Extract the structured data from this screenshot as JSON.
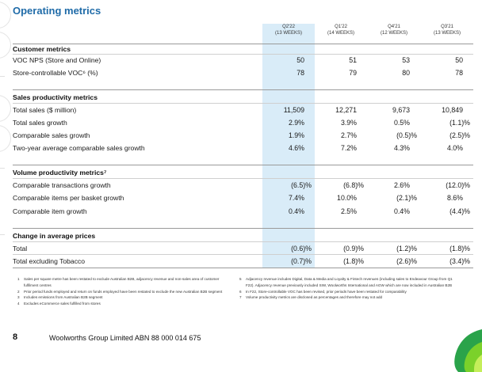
{
  "page_title": "Operating metrics",
  "columns": [
    {
      "period": "Q2'22",
      "weeks": "(13 WEEKS)"
    },
    {
      "period": "Q1'22",
      "weeks": "(14 WEEKS)"
    },
    {
      "period": "Q4'21",
      "weeks": "(12 WEEKS)"
    },
    {
      "period": "Q3'21",
      "weeks": "(13 WEEKS)"
    }
  ],
  "sections": [
    {
      "title": "Customer metrics",
      "rows": [
        {
          "label": "VOC NPS (Store and Online)",
          "values": [
            "50",
            "51",
            "53",
            "50"
          ]
        },
        {
          "label": "Store-controllable VOC⁶ (%)",
          "values": [
            "78",
            "79",
            "80",
            "78"
          ]
        }
      ]
    },
    {
      "title": "Sales productivity metrics",
      "rows": [
        {
          "label": "Total sales ($ million)",
          "values": [
            "11,509",
            "12,271",
            "9,673",
            "10,849"
          ]
        },
        {
          "label": "Total sales growth",
          "values": [
            "2.9%",
            "3.9%",
            "0.5%",
            "(1.1)%"
          ]
        },
        {
          "label": "Comparable sales growth",
          "values": [
            "1.9%",
            "2.7%",
            "(0.5)%",
            "(2.5)%"
          ]
        },
        {
          "label": "Two-year average comparable sales growth",
          "values": [
            "4.6%",
            "7.2%",
            "4.3%",
            "4.0%"
          ]
        }
      ]
    },
    {
      "title": "Volume productivity metrics⁷",
      "rows": [
        {
          "label": "Comparable transactions growth",
          "values": [
            "(6.5)%",
            "(6.8)%",
            "2.6%",
            "(12.0)%"
          ]
        },
        {
          "label": "Comparable items per basket growth",
          "values": [
            "7.4%",
            "10.0%",
            "(2.1)%",
            "8.6%"
          ]
        },
        {
          "label": "Comparable item growth",
          "values": [
            "0.4%",
            "2.5%",
            "0.4%",
            "(4.4)%"
          ]
        }
      ]
    },
    {
      "title": "Change in average prices",
      "rows": [
        {
          "label": "Total",
          "values": [
            "(0.6)%",
            "(0.9)%",
            "(1.2)%",
            "(1.8)%"
          ]
        },
        {
          "label": "Total excluding Tobacco",
          "values": [
            "(0.7)%",
            "(1.8)%",
            "(2.6)%",
            "(3.4)%"
          ]
        }
      ]
    }
  ],
  "footnotes_left": [
    {
      "num": "1",
      "text": "Sales per square metre has been restated to exclude Australian B2B, adjacency revenue and non-sales area of customer fulfilment centres"
    },
    {
      "num": "2",
      "text": "Prior period funds employed and return on funds employed have been restated to exclude the new Australian B2B segment"
    },
    {
      "num": "3",
      "text": "Includes emissions from Australian B2B segment"
    },
    {
      "num": "4",
      "text": "Excludes eCommerce sales fulfilled from stores"
    }
  ],
  "footnotes_right": [
    {
      "num": "5",
      "text": "Adjacency revenue includes Digital, Data & Media and Loyalty & Fintech revenues (including sales to Endeavour Group from Q1 F22). Adjacency revenue previously included SIW, Woolworths International and AGW which are now included in Australian B2B"
    },
    {
      "num": "6",
      "text": "In F22, Store-controllable VOC has been revised, prior periods have been restated for comparability"
    },
    {
      "num": "7",
      "text": "Volume productivity metrics are disclosed as percentages and therefore may not add"
    }
  ],
  "page_number": "8",
  "footer": "Woolworths Group Limited ABN 88 000 014 675",
  "colors": {
    "title_blue": "#1f6ba8",
    "highlight": "#d9ecf8",
    "brand_green": "#2aa34a"
  }
}
